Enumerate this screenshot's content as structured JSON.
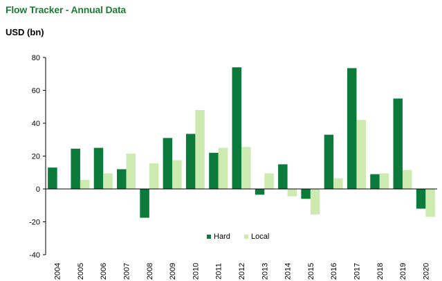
{
  "chart_data": {
    "type": "bar",
    "title": "Flow Tracker - Annual Data",
    "ylabel": "USD (bn)",
    "xlabel": "",
    "ylim": [
      -40,
      80
    ],
    "yticks": [
      80,
      60,
      40,
      20,
      0,
      -20,
      -40
    ],
    "categories": [
      "2004",
      "2005",
      "2006",
      "2007",
      "2008",
      "2009",
      "2010",
      "2011",
      "2012",
      "2013",
      "2014",
      "2015",
      "2016",
      "2017",
      "2018",
      "2019",
      "2020"
    ],
    "series": [
      {
        "name": "Hard",
        "color": "#0b7a3b",
        "values": [
          13,
          24.5,
          25,
          12,
          -17.5,
          31,
          33.5,
          22,
          74,
          -3.5,
          15,
          -6,
          33,
          73.5,
          9,
          55,
          -12
        ]
      },
      {
        "name": "Local",
        "color": "#cdeab0",
        "values": [
          0,
          5.5,
          9.5,
          21.5,
          15.5,
          17.5,
          48,
          25,
          25.5,
          9.5,
          -4.5,
          -15.5,
          6.5,
          42,
          9.5,
          11.5,
          -17
        ]
      }
    ],
    "legend": "bottom-center"
  }
}
